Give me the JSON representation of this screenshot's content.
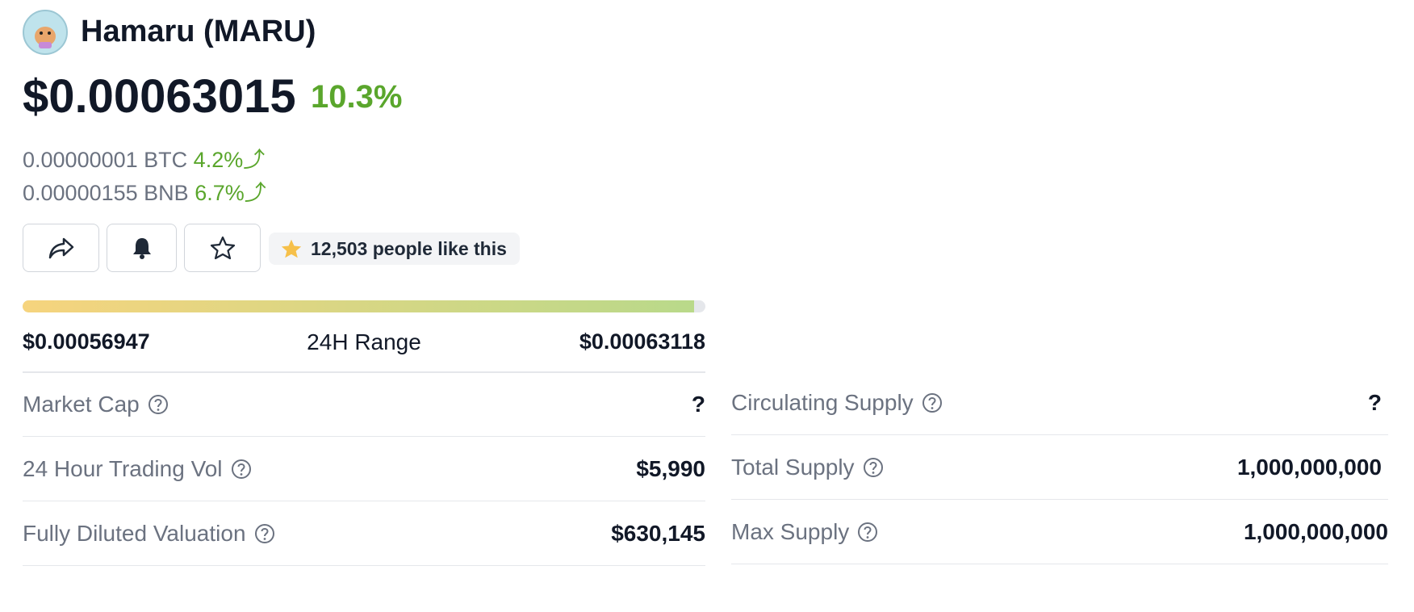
{
  "header": {
    "name": "Hamaru (MARU)",
    "price": "$0.00063015",
    "change": "10.3%"
  },
  "conversions": [
    {
      "amount": "0.00000001 BTC",
      "change": "4.2%"
    },
    {
      "amount": "0.00000155 BNB",
      "change": "6.7%"
    }
  ],
  "likes": "12,503 people like this",
  "range": {
    "low": "$0.00056947",
    "label": "24H Range",
    "high": "$0.00063118"
  },
  "stats_left": [
    {
      "label": "Market Cap",
      "value": "?"
    },
    {
      "label": "24 Hour Trading Vol",
      "value": "$5,990"
    },
    {
      "label": "Fully Diluted Valuation",
      "value": "$630,145"
    }
  ],
  "stats_right": [
    {
      "label": "Circulating Supply",
      "value": "?"
    },
    {
      "label": "Total Supply",
      "value": "1,000,000,000"
    },
    {
      "label": "Max Supply",
      "value": "1,000,000,000"
    }
  ]
}
